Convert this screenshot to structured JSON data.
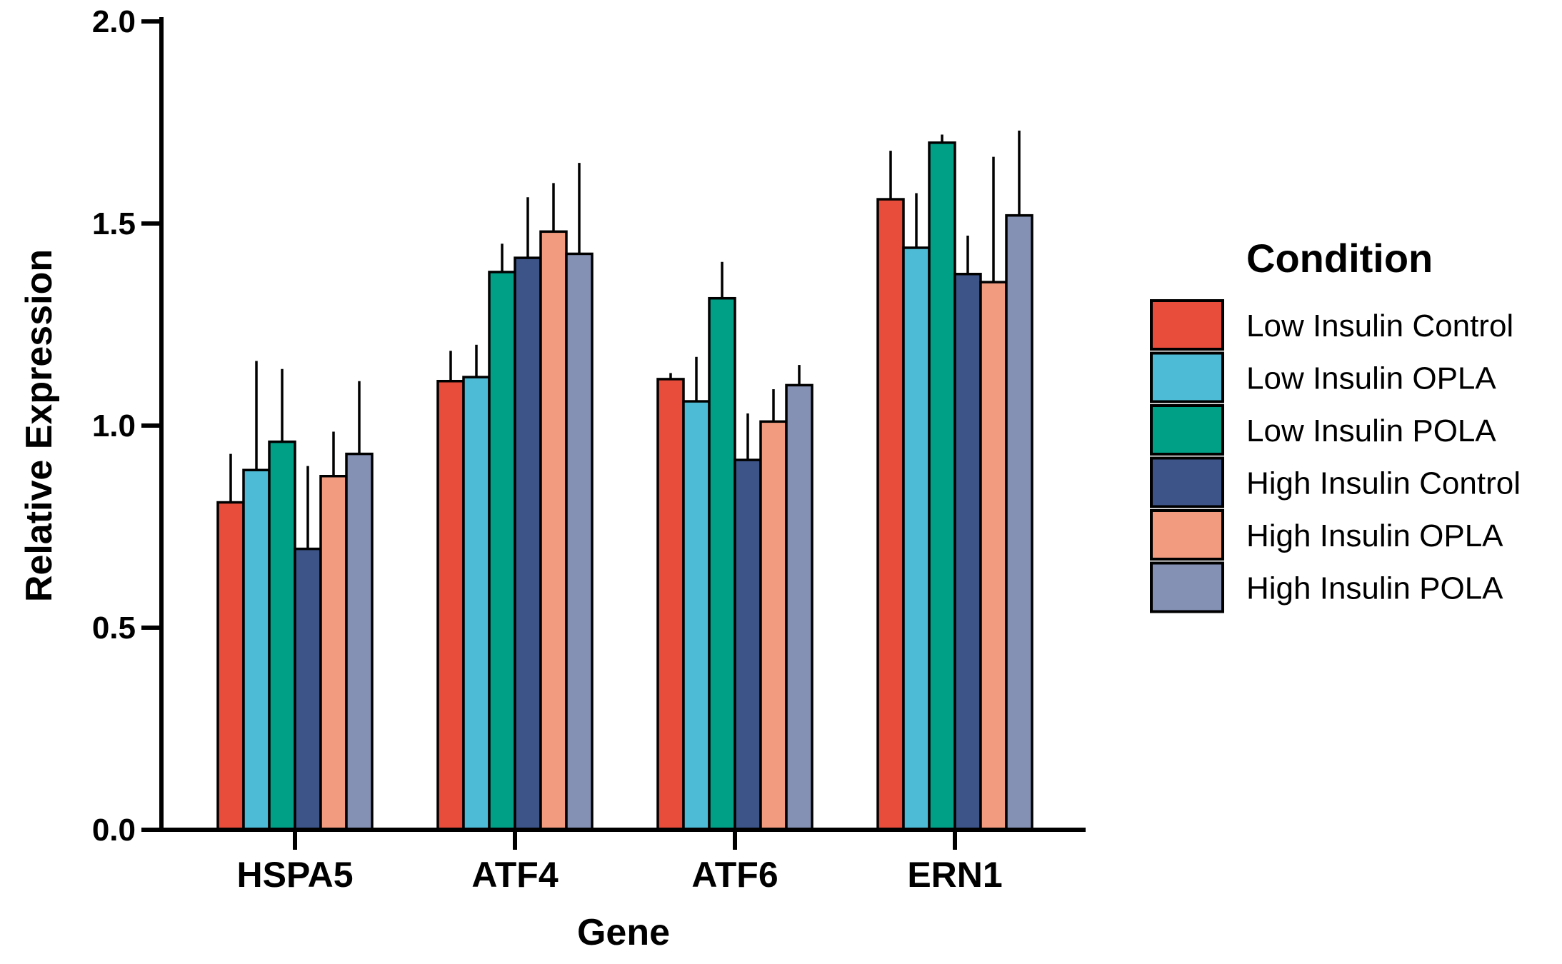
{
  "chart_data": {
    "type": "bar",
    "xlabel": "Gene",
    "ylabel": "Relative Expression",
    "ylim": [
      0,
      2.0
    ],
    "yticks": [
      "0.0",
      "0.5",
      "1.0",
      "1.5",
      "2.0"
    ],
    "categories": [
      "HSPA5",
      "ATF4",
      "ATF6",
      "ERN1"
    ],
    "legend": {
      "title": "Condition",
      "position": "right"
    },
    "grid": false,
    "series": [
      {
        "name": "Low Insulin Control",
        "color": "#E84C3A",
        "values": [
          0.81,
          1.11,
          1.115,
          1.56
        ],
        "errors": [
          0.12,
          0.075,
          0.015,
          0.12
        ]
      },
      {
        "name": "Low Insulin OPLA",
        "color": "#4DBBD5",
        "values": [
          0.89,
          1.12,
          1.06,
          1.44
        ],
        "errors": [
          0.27,
          0.08,
          0.11,
          0.135
        ]
      },
      {
        "name": "Low Insulin POLA",
        "color": "#00A087",
        "values": [
          0.96,
          1.38,
          1.315,
          1.7
        ],
        "errors": [
          0.18,
          0.07,
          0.09,
          0.02
        ]
      },
      {
        "name": "High Insulin Control",
        "color": "#3C5488",
        "values": [
          0.695,
          1.415,
          0.915,
          1.375
        ],
        "errors": [
          0.205,
          0.15,
          0.115,
          0.095
        ]
      },
      {
        "name": "High Insulin OPLA",
        "color": "#F39B7F",
        "values": [
          0.875,
          1.48,
          1.01,
          1.355
        ],
        "errors": [
          0.11,
          0.12,
          0.08,
          0.31
        ]
      },
      {
        "name": "High Insulin POLA",
        "color": "#8491B4",
        "values": [
          0.93,
          1.425,
          1.1,
          1.52
        ],
        "errors": [
          0.18,
          0.225,
          0.05,
          0.21
        ]
      }
    ]
  }
}
